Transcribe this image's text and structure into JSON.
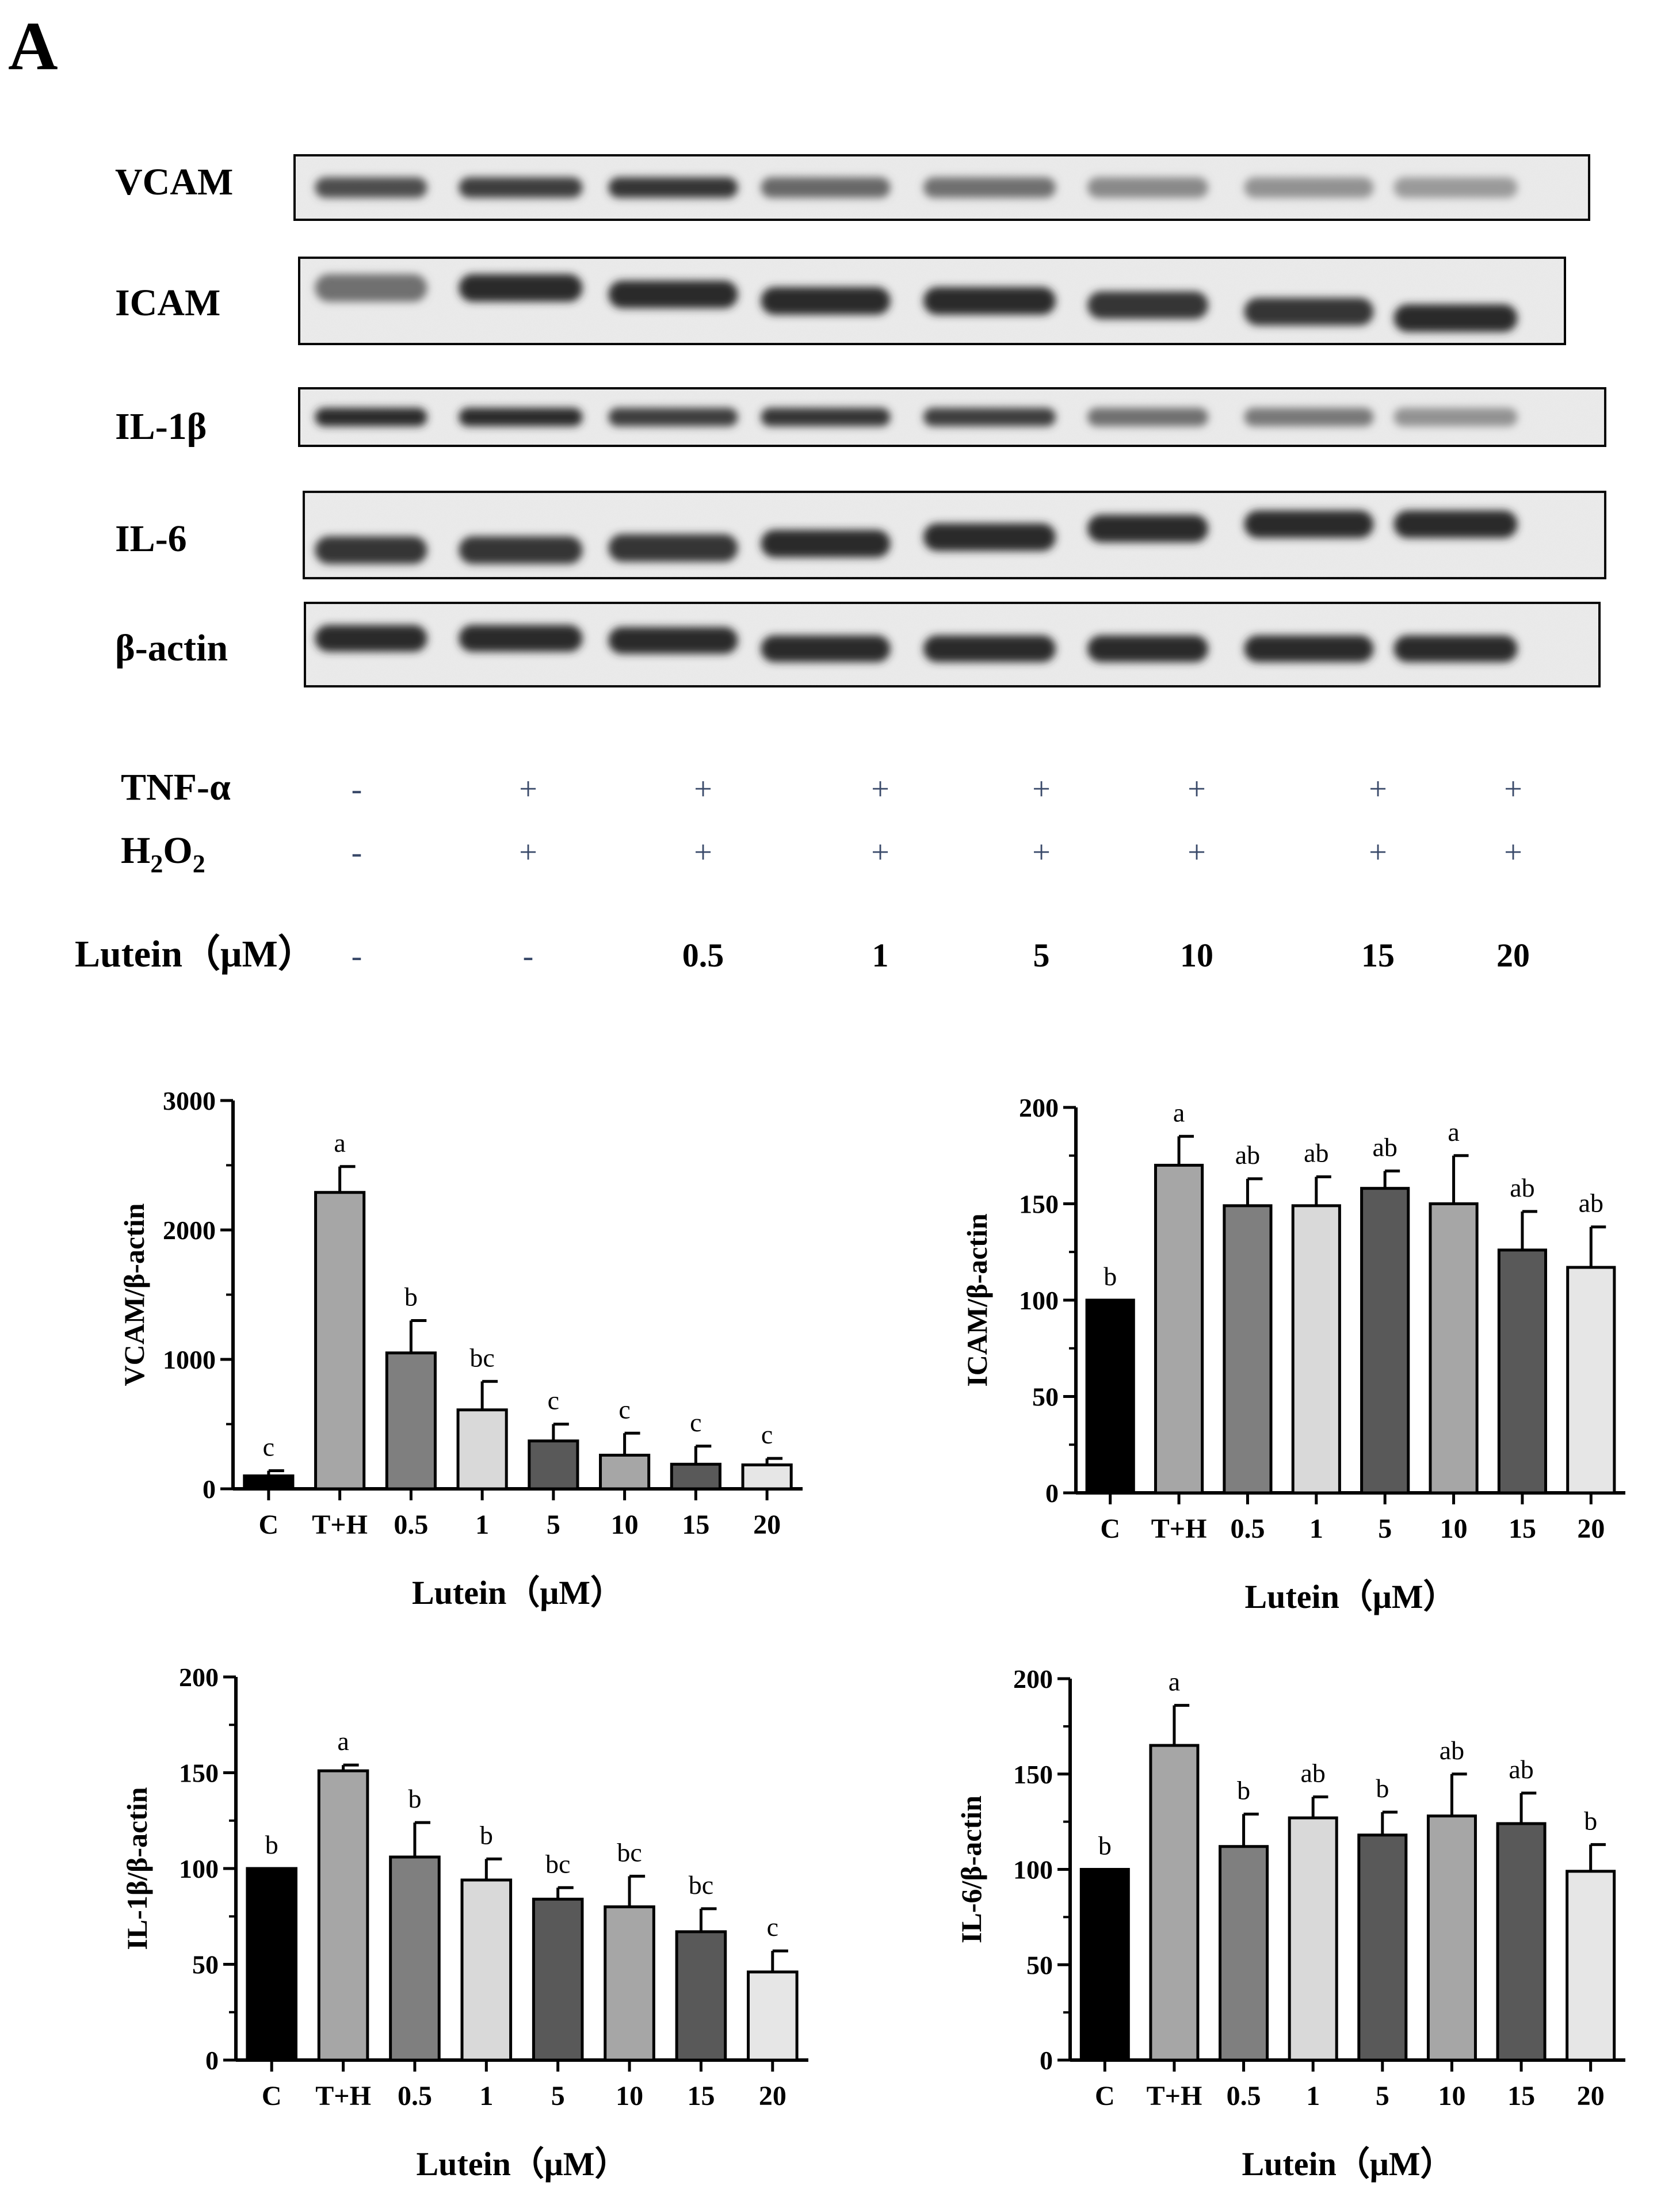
{
  "panel_label": "A",
  "blot": {
    "rows": [
      {
        "label": "VCAM",
        "band_intensity": [
          0.75,
          0.85,
          0.9,
          0.6,
          0.55,
          0.4,
          0.35,
          0.3
        ],
        "band_offset": [
          0,
          0,
          0,
          0,
          0,
          0,
          0,
          0
        ]
      },
      {
        "label": "ICAM",
        "band_intensity": [
          0.55,
          0.95,
          0.95,
          0.95,
          0.95,
          0.9,
          0.9,
          0.95
        ],
        "band_offset": [
          -0.3,
          -0.3,
          -0.15,
          0,
          0,
          0.1,
          0.25,
          0.4
        ]
      },
      {
        "label": "IL-1β",
        "band_intensity": [
          0.95,
          0.95,
          0.85,
          0.9,
          0.85,
          0.55,
          0.5,
          0.35
        ],
        "band_offset": [
          0,
          0,
          0,
          0,
          0,
          0,
          0,
          0
        ]
      },
      {
        "label": "IL-6",
        "band_intensity": [
          0.9,
          0.9,
          0.9,
          0.95,
          0.95,
          0.95,
          0.95,
          0.95
        ],
        "band_offset": [
          0.35,
          0.35,
          0.3,
          0.2,
          0.05,
          -0.15,
          -0.25,
          -0.25
        ]
      },
      {
        "label": "β-actin",
        "band_intensity": [
          0.95,
          0.95,
          0.95,
          0.95,
          0.95,
          0.95,
          0.95,
          0.95
        ],
        "band_offset": [
          -0.15,
          -0.15,
          -0.1,
          0.1,
          0.1,
          0.1,
          0.1,
          0.1
        ]
      }
    ],
    "treatments": [
      {
        "label": "TNF-α",
        "values": [
          "-",
          "+",
          "+",
          "+",
          "+",
          "+",
          "+",
          "+"
        ]
      },
      {
        "label": "H2O2",
        "label_main": "H",
        "label_sub1": "2",
        "label_mid": "O",
        "label_sub2": "2",
        "values": [
          "-",
          "+",
          "+",
          "+",
          "+",
          "+",
          "+",
          "+"
        ]
      },
      {
        "label": "Lutein（μM）",
        "values": [
          "-",
          "-",
          "0.5",
          "1",
          "5",
          "10",
          "15",
          "20"
        ]
      }
    ]
  },
  "chart_data": [
    {
      "type": "bar",
      "categories": [
        "C",
        "T+H",
        "0.5",
        "1",
        "5",
        "10",
        "15",
        "20"
      ],
      "values": [
        100,
        2290,
        1050,
        610,
        370,
        260,
        190,
        185
      ],
      "errors": [
        40,
        200,
        250,
        220,
        130,
        170,
        140,
        50
      ],
      "significance": [
        "c",
        "a",
        "b",
        "bc",
        "c",
        "c",
        "c",
        "c"
      ],
      "title": "",
      "xlabel": "Lutein（μM）",
      "ylabel": "VCAM/β-actin",
      "ylim": [
        0,
        3000
      ],
      "yticks": [
        0,
        1000,
        2000,
        3000
      ],
      "colors": [
        "#000000",
        "#a6a6a6",
        "#7f7f7f",
        "#d9d9d9",
        "#595959",
        "#a6a6a6",
        "#595959",
        "#e6e6e6"
      ]
    },
    {
      "type": "bar",
      "categories": [
        "C",
        "T+H",
        "0.5",
        "1",
        "5",
        "10",
        "15",
        "20"
      ],
      "values": [
        100,
        170,
        149,
        149,
        158,
        150,
        126,
        117
      ],
      "errors": [
        0,
        15,
        14,
        15,
        9,
        25,
        20,
        21
      ],
      "significance": [
        "b",
        "a",
        "ab",
        "ab",
        "ab",
        "a",
        "ab",
        "ab"
      ],
      "title": "",
      "xlabel": "Lutein（μM）",
      "ylabel": "ICAM/β-actin",
      "ylim": [
        0,
        200
      ],
      "yticks": [
        0,
        50,
        100,
        150,
        200
      ],
      "colors": [
        "#000000",
        "#a6a6a6",
        "#7f7f7f",
        "#d9d9d9",
        "#595959",
        "#a6a6a6",
        "#595959",
        "#e6e6e6"
      ]
    },
    {
      "type": "bar",
      "categories": [
        "C",
        "T+H",
        "0.5",
        "1",
        "5",
        "10",
        "15",
        "20"
      ],
      "values": [
        100,
        151,
        106,
        94,
        84,
        80,
        67,
        46
      ],
      "errors": [
        0,
        3,
        18,
        11,
        6,
        16,
        12,
        11
      ],
      "significance": [
        "b",
        "a",
        "b",
        "b",
        "bc",
        "bc",
        "bc",
        "c"
      ],
      "title": "",
      "xlabel": "Lutein（μM）",
      "ylabel": "IL-1β/β-actin",
      "ylim": [
        0,
        200
      ],
      "yticks": [
        0,
        50,
        100,
        150,
        200
      ],
      "colors": [
        "#000000",
        "#a6a6a6",
        "#7f7f7f",
        "#d9d9d9",
        "#595959",
        "#a6a6a6",
        "#595959",
        "#e6e6e6"
      ]
    },
    {
      "type": "bar",
      "categories": [
        "C",
        "T+H",
        "0.5",
        "1",
        "5",
        "10",
        "15",
        "20"
      ],
      "values": [
        100,
        165,
        112,
        127,
        118,
        128,
        124,
        99
      ],
      "errors": [
        0,
        21,
        17,
        11,
        12,
        22,
        16,
        14
      ],
      "significance": [
        "b",
        "a",
        "b",
        "ab",
        "b",
        "ab",
        "ab",
        "b"
      ],
      "title": "",
      "xlabel": "Lutein（μM）",
      "ylabel": "IL-6/β-actin",
      "ylim": [
        0,
        200
      ],
      "yticks": [
        0,
        50,
        100,
        150,
        200
      ],
      "colors": [
        "#000000",
        "#a6a6a6",
        "#7f7f7f",
        "#d9d9d9",
        "#595959",
        "#a6a6a6",
        "#595959",
        "#e6e6e6"
      ]
    }
  ]
}
